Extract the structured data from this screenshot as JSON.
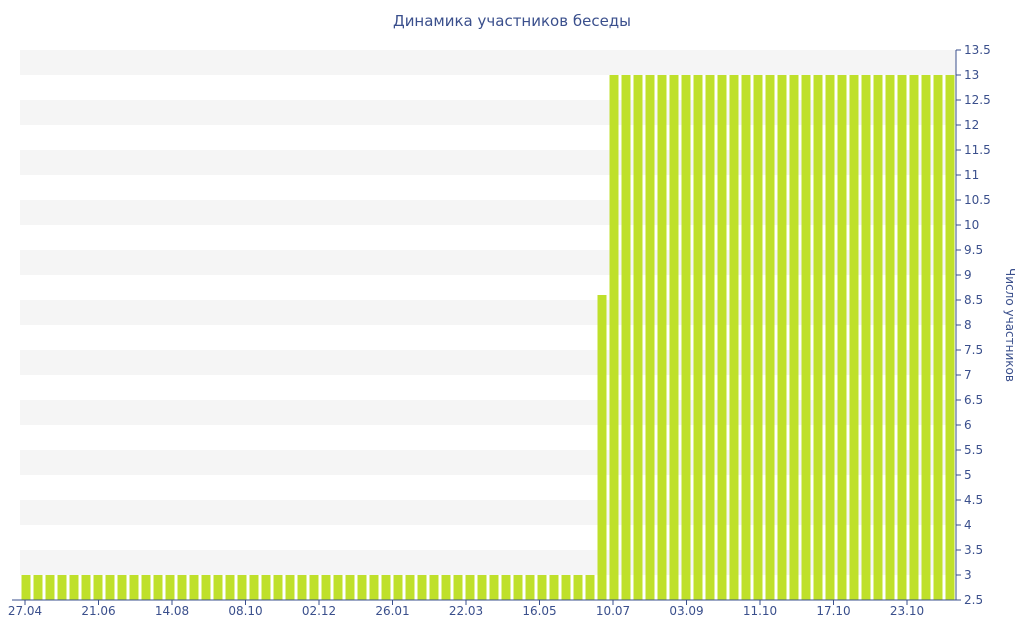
{
  "chart_data": {
    "type": "bar",
    "title": "Динамика участников беседы",
    "xlabel": "",
    "ylabel": "Число участников",
    "ylim": [
      2.5,
      13.5
    ],
    "y_axis_side": "right",
    "y_ticks": [
      "2.5",
      "3",
      "3.5",
      "4",
      "4.5",
      "5",
      "5.5",
      "6",
      "6.5",
      "7",
      "7.5",
      "8",
      "8.5",
      "9",
      "9.5",
      "10",
      "10.5",
      "11",
      "11.5",
      "12",
      "12.5",
      "13",
      "13.5"
    ],
    "x_tick_labels": [
      "27.04",
      "21.06",
      "14.08",
      "08.10",
      "02.12",
      "26.01",
      "22.03",
      "16.05",
      "10.07",
      "03.09",
      "11.10",
      "17.10",
      "23.10"
    ],
    "grid": "alternating horizontal bands",
    "bar_color": "#bfe02a",
    "band_color": "#f5f5f5",
    "series": [
      {
        "values": [
          3,
          3,
          3,
          3,
          3,
          3,
          3,
          3,
          3,
          3,
          3,
          3,
          3,
          3,
          3,
          3,
          3,
          3,
          3,
          3,
          3,
          3,
          3,
          3,
          3,
          3,
          3,
          3,
          3,
          3,
          3,
          3,
          3,
          3,
          3,
          3,
          3,
          3,
          3,
          3,
          3,
          3,
          3,
          3,
          3,
          3,
          3,
          3,
          8.6,
          13,
          13,
          13,
          13,
          13,
          13,
          13,
          13,
          13,
          13,
          13,
          13,
          13,
          13,
          13,
          13,
          13,
          13,
          13,
          13,
          13,
          13,
          13,
          13,
          13,
          13,
          13,
          13,
          13
        ]
      }
    ]
  }
}
